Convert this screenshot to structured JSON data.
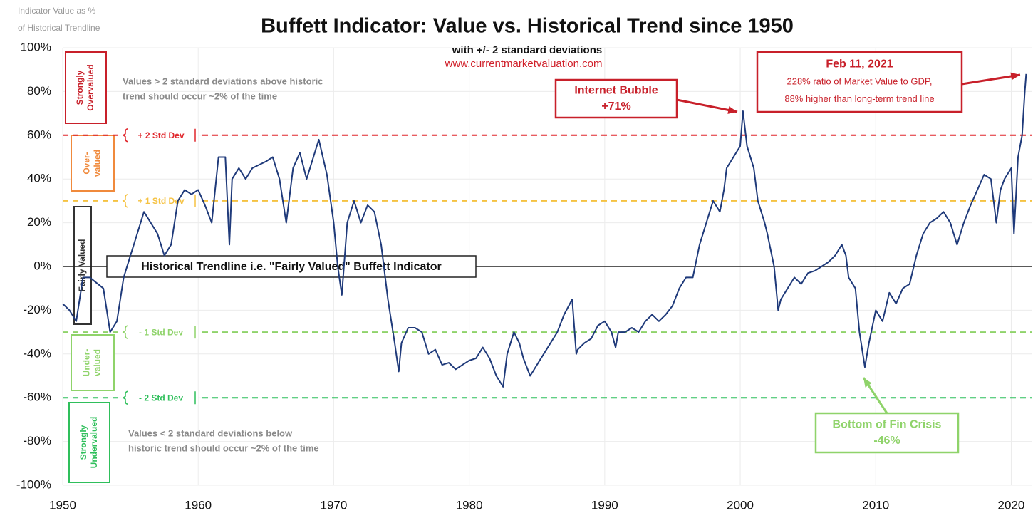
{
  "chart_data": {
    "type": "line",
    "title": "Buffett Indicator: Value vs. Historical Trend since 1950",
    "subtitle": "with +/- 2 standard deviations",
    "source": "www.currentmarketvaluation.com",
    "y_axis_label": [
      "Indicator Value as %",
      "of Historical Trendline"
    ],
    "color": "#1f3a7a",
    "x": [
      1950,
      1950.5,
      1951,
      1951.5,
      1952,
      1953,
      1953.5,
      1954,
      1954.5,
      1955,
      1955.5,
      1956,
      1956.5,
      1957,
      1957.5,
      1958,
      1958.5,
      1959,
      1959.5,
      1960,
      1960.5,
      1961,
      1961.5,
      1962,
      1962.3,
      1962.5,
      1963,
      1963.5,
      1964,
      1965,
      1965.5,
      1966,
      1966.5,
      1967,
      1967.5,
      1968,
      1968.5,
      1968.9,
      1969.5,
      1970,
      1970.3,
      1970.6,
      1971,
      1971.5,
      1972,
      1972.5,
      1973,
      1973.5,
      1974,
      1974.5,
      1974.8,
      1975,
      1975.5,
      1976,
      1976.5,
      1977,
      1977.5,
      1978,
      1978.5,
      1979,
      1979.5,
      1980,
      1980.5,
      1981,
      1981.5,
      1982,
      1982.5,
      1982.8,
      1983.3,
      1983.7,
      1984,
      1984.5,
      1985,
      1985.5,
      1986,
      1986.5,
      1987,
      1987.6,
      1987.9,
      1988,
      1988.5,
      1989,
      1989.5,
      1990,
      1990.5,
      1990.8,
      1991,
      1991.5,
      1992,
      1992.5,
      1993,
      1993.5,
      1994,
      1994.5,
      1995,
      1995.5,
      1996,
      1996.5,
      1997,
      1997.5,
      1998,
      1998.5,
      1998.8,
      1999,
      1999.5,
      2000,
      2000.2,
      2000.5,
      2001,
      2001.3,
      2001.8,
      2002,
      2002.5,
      2002.8,
      2003,
      2003.5,
      2004,
      2004.5,
      2005,
      2005.5,
      2006,
      2006.5,
      2007,
      2007.5,
      2007.8,
      2008,
      2008.5,
      2008.8,
      2009.2,
      2009.5,
      2010,
      2010.5,
      2011,
      2011.5,
      2012,
      2012.5,
      2013,
      2013.5,
      2014,
      2014.5,
      2015,
      2015.5,
      2016,
      2016.5,
      2017,
      2017.5,
      2018,
      2018.5,
      2018.9,
      2019.2,
      2019.5,
      2020,
      2020.2,
      2020.5,
      2020.8,
      2021,
      2021.1
    ],
    "values": [
      -17,
      -20,
      -25,
      -5,
      -5,
      -10,
      -30,
      -25,
      -5,
      5,
      15,
      25,
      20,
      15,
      5,
      10,
      30,
      35,
      33,
      35,
      28,
      20,
      50,
      50,
      10,
      40,
      45,
      40,
      45,
      48,
      50,
      40,
      20,
      45,
      52,
      40,
      50,
      58,
      42,
      20,
      0,
      -13,
      20,
      30,
      20,
      28,
      25,
      10,
      -15,
      -35,
      -48,
      -35,
      -28,
      -28,
      -30,
      -40,
      -38,
      -45,
      -44,
      -47,
      -45,
      -43,
      -42,
      -37,
      -42,
      -50,
      -55,
      -40,
      -30,
      -35,
      -42,
      -50,
      -45,
      -40,
      -35,
      -30,
      -22,
      -15,
      -40,
      -38,
      -35,
      -33,
      -27,
      -25,
      -30,
      -37,
      -30,
      -30,
      -28,
      -30,
      -25,
      -22,
      -25,
      -22,
      -18,
      -10,
      -5,
      -5,
      10,
      20,
      30,
      25,
      35,
      45,
      50,
      55,
      71,
      55,
      45,
      30,
      20,
      15,
      0,
      -20,
      -15,
      -10,
      -5,
      -8,
      -3,
      -2,
      0,
      2,
      5,
      10,
      5,
      -5,
      -10,
      -30,
      -46,
      -35,
      -20,
      -25,
      -12,
      -17,
      -10,
      -8,
      5,
      15,
      20,
      22,
      25,
      20,
      10,
      20,
      28,
      35,
      42,
      40,
      20,
      35,
      40,
      45,
      15,
      50,
      60,
      80,
      88
    ],
    "xlim": [
      1950,
      2021.5
    ],
    "ylim": [
      -100,
      100
    ],
    "xticks": [
      1950,
      1960,
      1970,
      1980,
      1990,
      2000,
      2010,
      2020
    ],
    "yticks": [
      {
        "value": 100,
        "label": "100%"
      },
      {
        "value": 80,
        "label": "80%"
      },
      {
        "value": 60,
        "label": "60%"
      },
      {
        "value": 40,
        "label": "40%"
      },
      {
        "value": 20,
        "label": "20%"
      },
      {
        "value": 0,
        "label": "0%"
      },
      {
        "value": -20,
        "label": "-20%"
      },
      {
        "value": -40,
        "label": "-40%"
      },
      {
        "value": -60,
        "label": "-60%"
      },
      {
        "value": -80,
        "label": "-80%"
      },
      {
        "value": -100,
        "label": "-100%"
      }
    ],
    "grid": true,
    "reference_lines": [
      {
        "value": 60,
        "label": "+ 2 Std Dev",
        "color": "#e0262b"
      },
      {
        "value": 30,
        "label": "+ 1 Std Dev",
        "color": "#f5c242"
      },
      {
        "value": 0,
        "label": "Historical Trendline i.e. \"Fairly Valued\" Buffett Indicator",
        "color": "#222222"
      },
      {
        "value": -30,
        "label": "- 1 Std Dev",
        "color": "#8fd36a"
      },
      {
        "value": -60,
        "label": "- 2 Std Dev",
        "color": "#2fbf5b"
      }
    ],
    "zones": [
      {
        "label": [
          "Strongly",
          "Overvalued"
        ],
        "color": "#c8202a"
      },
      {
        "label": [
          "Over-",
          "valued"
        ],
        "color": "#f08a3c"
      },
      {
        "label": [
          "Fairly Valued"
        ],
        "color": "#333333"
      },
      {
        "label": [
          "Under-",
          "valued"
        ],
        "color": "#8fd36a"
      },
      {
        "label": [
          "Strongly",
          "Undervalued"
        ],
        "color": "#2fbf5b"
      }
    ],
    "notes": [
      [
        "Values > 2 standard deviations above historic",
        "trend should occur ~2% of the time"
      ],
      [
        "Values < 2 standard deviations below",
        "historic trend should occur ~2% of the time"
      ]
    ],
    "annotations": [
      {
        "lines": [
          "Internet Bubble",
          "+71%"
        ],
        "color": "#c8202a"
      },
      {
        "lines": [
          "Feb 11, 2021",
          "228% ratio of Market Value to GDP,",
          "88% higher than long-term trend line"
        ],
        "color": "#c8202a"
      },
      {
        "lines": [
          "Bottom of Fin Crisis",
          "-46%"
        ],
        "color": "#8fd36a"
      }
    ]
  }
}
